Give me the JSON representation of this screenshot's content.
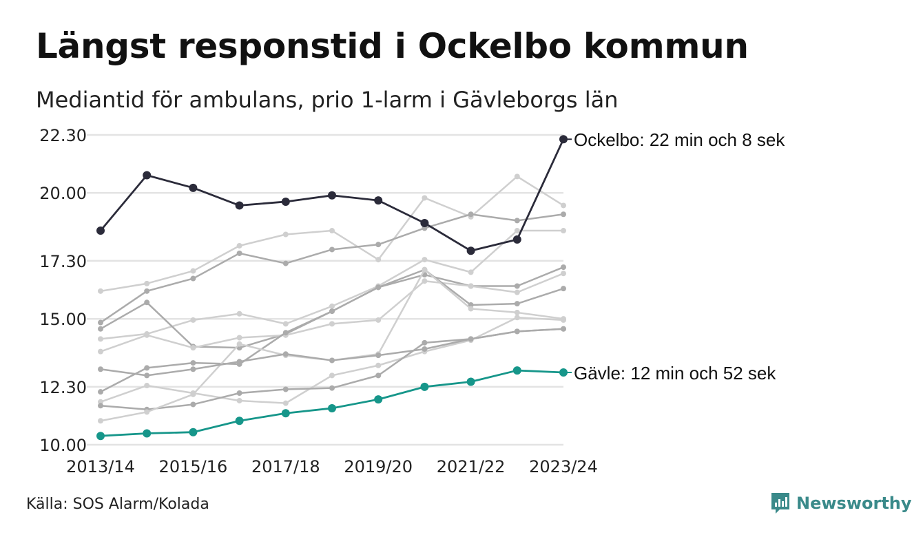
{
  "header": {
    "title": "Längst responstid i Ockelbo kommun",
    "subtitle": "Mediantid för ambulans, prio 1-larm i Gävleborgs län"
  },
  "footer": {
    "source": "Källa: SOS Alarm/Kolada",
    "brand": "Newsworthy"
  },
  "colors": {
    "highlight_dark": "#2b2b3a",
    "highlight_teal": "#16968a",
    "background_light": "#cfcfcf",
    "background_mid": "#ababab",
    "grid": "#e3e3e3",
    "brand": "#3a8a8a"
  },
  "chart_data": {
    "type": "line",
    "x": [
      "2013/14",
      "2014/15",
      "2015/16",
      "2016/17",
      "2017/18",
      "2018/19",
      "2019/20",
      "2020/21",
      "2021/22",
      "2022/23",
      "2023/24"
    ],
    "x_tick_labels": [
      "2013/14",
      "2015/16",
      "2017/18",
      "2019/20",
      "2021/22",
      "2023/24"
    ],
    "y_ticks": [
      10.0,
      12.3,
      15.0,
      17.3,
      20.0,
      22.3
    ],
    "y_tick_labels": [
      "10.00",
      "12.30",
      "15.00",
      "17.30",
      "20.00",
      "22.30"
    ],
    "ylim": [
      10.0,
      22.5
    ],
    "grid": true,
    "highlighted": [
      {
        "name": "Ockelbo",
        "label": "Ockelbo: 22 min och 8 sek",
        "color": "#2b2b3a",
        "values": [
          18.5,
          20.7,
          20.2,
          19.5,
          19.65,
          19.9,
          19.7,
          18.8,
          17.7,
          18.15,
          22.13
        ]
      },
      {
        "name": "Gävle",
        "label": "Gävle: 12 min och 52 sek",
        "color": "#16968a",
        "values": [
          10.35,
          10.45,
          10.5,
          10.95,
          11.25,
          11.45,
          11.8,
          12.3,
          12.5,
          12.95,
          12.87
        ]
      }
    ],
    "background_series": [
      {
        "color": "#cfcfcf",
        "values": [
          16.1,
          16.4,
          16.9,
          17.9,
          18.35,
          18.5,
          17.35,
          19.8,
          19.05,
          20.65,
          19.5
        ]
      },
      {
        "color": "#ababab",
        "values": [
          14.85,
          16.1,
          16.6,
          17.6,
          17.2,
          17.75,
          17.95,
          18.6,
          19.15,
          18.9,
          19.15
        ]
      },
      {
        "color": "#cfcfcf",
        "values": [
          14.2,
          14.4,
          14.95,
          15.2,
          14.8,
          15.5,
          16.3,
          17.35,
          16.85,
          18.5,
          18.5
        ]
      },
      {
        "color": "#ababab",
        "values": [
          14.6,
          15.65,
          13.9,
          13.85,
          14.4,
          15.3,
          16.25,
          16.75,
          16.3,
          16.3,
          17.05
        ]
      },
      {
        "color": "#cfcfcf",
        "values": [
          13.7,
          14.35,
          13.85,
          14.25,
          14.35,
          14.8,
          14.95,
          16.5,
          16.3,
          16.05,
          16.8
        ]
      },
      {
        "color": "#ababab",
        "values": [
          12.1,
          13.05,
          13.25,
          13.2,
          14.45,
          15.3,
          16.25,
          16.95,
          15.55,
          15.6,
          16.2
        ]
      },
      {
        "color": "#cfcfcf",
        "values": [
          11.7,
          12.35,
          12.05,
          11.75,
          11.65,
          12.75,
          13.15,
          13.7,
          14.15,
          15.05,
          14.95
        ]
      },
      {
        "color": "#ababab",
        "values": [
          11.55,
          11.4,
          11.6,
          12.05,
          12.2,
          12.25,
          12.75,
          14.05,
          14.2,
          14.5,
          14.6
        ]
      },
      {
        "color": "#cfcfcf",
        "values": [
          10.95,
          11.3,
          12.0,
          14.0,
          13.55,
          13.35,
          13.6,
          16.95,
          15.4,
          15.25,
          15.0
        ]
      },
      {
        "color": "#ababab",
        "values": [
          13.0,
          12.75,
          13.0,
          13.3,
          13.6,
          13.35,
          13.55,
          13.8,
          14.2,
          14.5,
          14.6
        ]
      }
    ]
  }
}
